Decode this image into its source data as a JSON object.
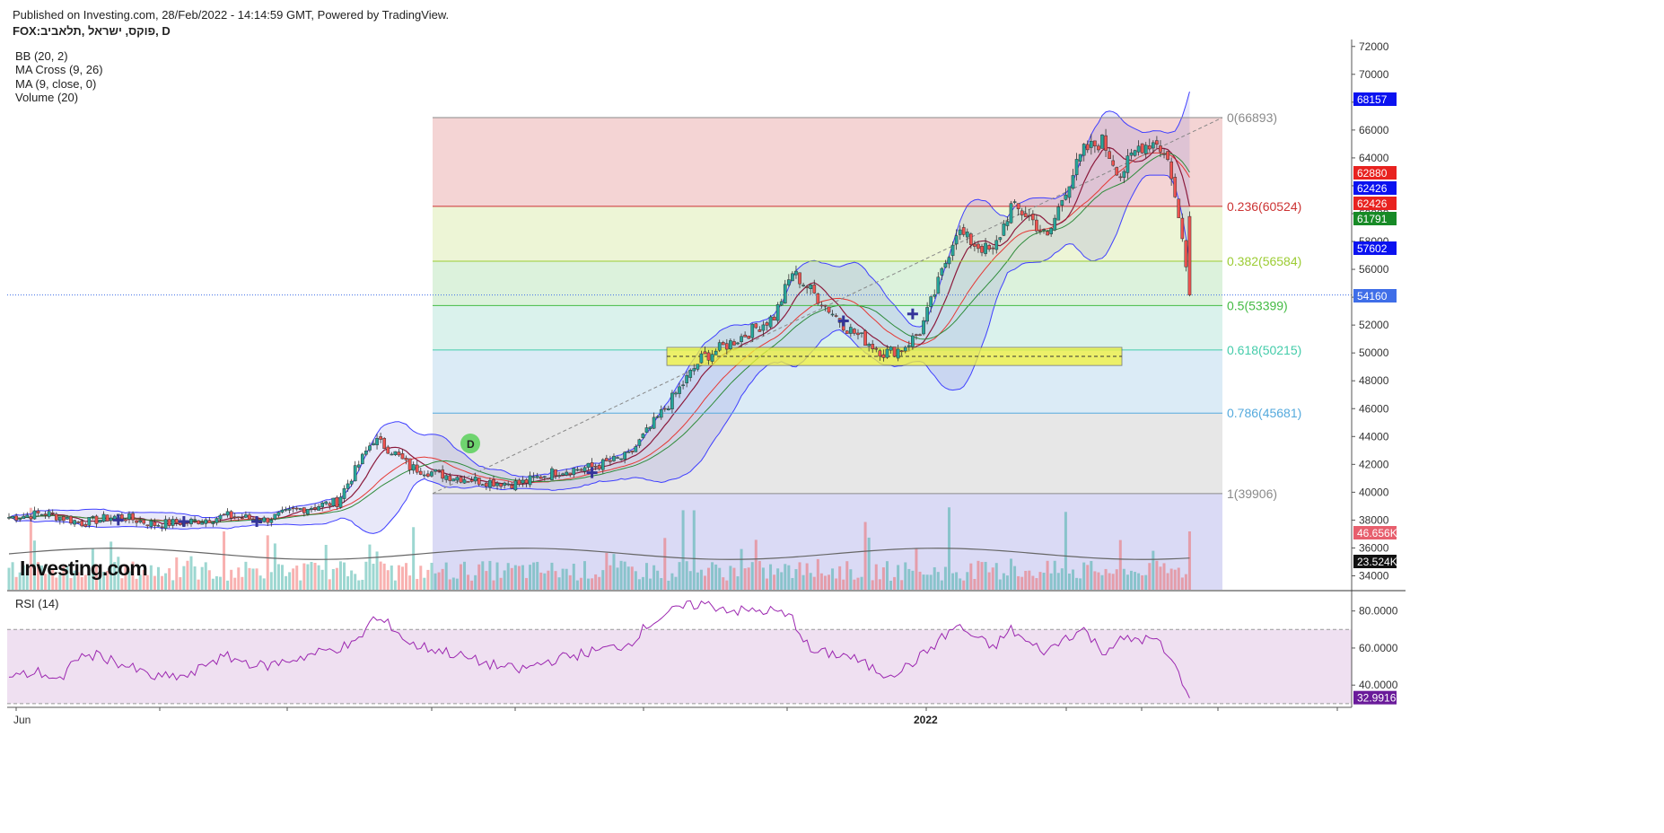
{
  "header": {
    "published": "Published on Investing.com, 28/Feb/2022 - 14:14:59 GMT, Powered by TradingView.",
    "symbol": "FOX:פוקס, ישראל ,תלאביב, D",
    "indicators": [
      "BB (20, 2)",
      "MA Cross (9, 26)",
      "MA (9, close, 0)",
      "Volume (20)"
    ]
  },
  "logo": "Investing.com",
  "rsi_label": "RSI (14)",
  "colors": {
    "up": "#26a69a",
    "down": "#ef5350",
    "bb": "#3f3fff",
    "rsi": "#9c27b0",
    "price_line": "#3f6ee8"
  },
  "chart_data": {
    "type": "candlestick",
    "timeframe": "D",
    "x_labels": [
      "Jun",
      "2022"
    ],
    "price_axis": {
      "range": [
        33000,
        72500
      ],
      "ticks": [
        34000,
        36000,
        38000,
        40000,
        42000,
        44000,
        46000,
        48000,
        50000,
        52000,
        54000,
        56000,
        58000,
        60000,
        62000,
        64000,
        66000,
        68000,
        70000,
        72000
      ]
    },
    "last_price": 54160,
    "price_badges": [
      {
        "value": "68157",
        "color": "#0b12f0"
      },
      {
        "value": "62880",
        "color": "#e8221f"
      },
      {
        "value": "62426",
        "color": "#0b12f0"
      },
      {
        "value": "62426",
        "color": "#e8221f"
      },
      {
        "value": "61791",
        "color": "#178a26"
      },
      {
        "value": "57602",
        "color": "#0b12f0"
      },
      {
        "value": "54160",
        "color": "#3f6ee8"
      },
      {
        "value": "46.656K",
        "color": "#e75f6d"
      },
      {
        "value": "23.524K",
        "color": "#111111"
      }
    ],
    "fibonacci": {
      "start_price": 39906,
      "end_price": 66893,
      "levels": [
        {
          "label": "0(66893)",
          "price": 66893,
          "line": "#8a8a8a",
          "fill": "#f2cccc",
          "text": "#8a8a8a"
        },
        {
          "label": "0.236(60524)",
          "price": 60524,
          "line": "#cc3333",
          "fill": "#eaf3cf",
          "text": "#cc3333"
        },
        {
          "label": "0.382(56584)",
          "price": 56584,
          "line": "#9ccc33",
          "fill": "#d6f0d6",
          "text": "#9ccc33"
        },
        {
          "label": "0.5(53399)",
          "price": 53399,
          "line": "#44bb44",
          "fill": "#d3f0e9",
          "text": "#44bb44"
        },
        {
          "label": "0.618(50215)",
          "price": 50215,
          "line": "#44ccaa",
          "fill": "#d5e8f4",
          "text": "#44ccaa"
        },
        {
          "label": "0.786(45681)",
          "price": 45681,
          "line": "#55aadd",
          "fill": "#e3e3e3",
          "text": "#55aadd"
        },
        {
          "label": "1(39906)",
          "price": 39906,
          "line": "#8a8a8a",
          "fill": "#d3d4f3",
          "text": "#8a8a8a"
        }
      ]
    },
    "support_zone": {
      "from": 49100,
      "to": 50400
    },
    "close_anchors": [
      [
        0,
        38200
      ],
      [
        10,
        38500
      ],
      [
        20,
        37800
      ],
      [
        30,
        38300
      ],
      [
        40,
        37700
      ],
      [
        50,
        37900
      ],
      [
        60,
        38300
      ],
      [
        70,
        38000
      ],
      [
        80,
        38800
      ],
      [
        90,
        39300
      ],
      [
        100,
        43800
      ],
      [
        105,
        43000
      ],
      [
        110,
        41800
      ],
      [
        120,
        41200
      ],
      [
        130,
        40800
      ],
      [
        140,
        40600
      ],
      [
        150,
        41500
      ],
      [
        160,
        41800
      ],
      [
        170,
        42600
      ],
      [
        180,
        46000
      ],
      [
        190,
        49600
      ],
      [
        200,
        51000
      ],
      [
        210,
        52600
      ],
      [
        215,
        55800
      ],
      [
        220,
        54500
      ],
      [
        230,
        51800
      ],
      [
        240,
        50000
      ],
      [
        245,
        50300
      ],
      [
        250,
        51500
      ],
      [
        255,
        55000
      ],
      [
        260,
        58800
      ],
      [
        265,
        57800
      ],
      [
        270,
        57200
      ],
      [
        275,
        60500
      ],
      [
        280,
        59800
      ],
      [
        285,
        58200
      ],
      [
        290,
        61800
      ],
      [
        295,
        64500
      ],
      [
        300,
        65200
      ],
      [
        305,
        62800
      ],
      [
        310,
        64800
      ],
      [
        315,
        65200
      ],
      [
        318,
        63800
      ],
      [
        320,
        61200
      ],
      [
        322,
        58200
      ],
      [
        324,
        54160
      ]
    ],
    "volume": {
      "max": 38000,
      "ma_level": 16000
    },
    "rsi": {
      "range": [
        28,
        90
      ],
      "ticks": [
        40,
        60,
        80
      ],
      "bands": [
        30,
        70
      ],
      "last": "32.9916",
      "anchors": [
        [
          0,
          44
        ],
        [
          8,
          47
        ],
        [
          15,
          42
        ],
        [
          18,
          55
        ],
        [
          25,
          56
        ],
        [
          35,
          48
        ],
        [
          40,
          44
        ],
        [
          50,
          45
        ],
        [
          55,
          53
        ],
        [
          60,
          55
        ],
        [
          70,
          50
        ],
        [
          80,
          55
        ],
        [
          90,
          60
        ],
        [
          95,
          62
        ],
        [
          100,
          76
        ],
        [
          105,
          72
        ],
        [
          110,
          62
        ],
        [
          120,
          58
        ],
        [
          130,
          52
        ],
        [
          140,
          48
        ],
        [
          150,
          54
        ],
        [
          160,
          58
        ],
        [
          170,
          62
        ],
        [
          175,
          72
        ],
        [
          180,
          78
        ],
        [
          185,
          82
        ],
        [
          190,
          84
        ],
        [
          200,
          80
        ],
        [
          210,
          80
        ],
        [
          215,
          76
        ],
        [
          220,
          58
        ],
        [
          230,
          56
        ],
        [
          240,
          46
        ],
        [
          245,
          48
        ],
        [
          250,
          55
        ],
        [
          260,
          72
        ],
        [
          270,
          60
        ],
        [
          275,
          70
        ],
        [
          280,
          62
        ],
        [
          285,
          58
        ],
        [
          290,
          66
        ],
        [
          295,
          70
        ],
        [
          300,
          58
        ],
        [
          305,
          64
        ],
        [
          310,
          65
        ],
        [
          315,
          64
        ],
        [
          320,
          50
        ],
        [
          324,
          33
        ]
      ]
    }
  }
}
